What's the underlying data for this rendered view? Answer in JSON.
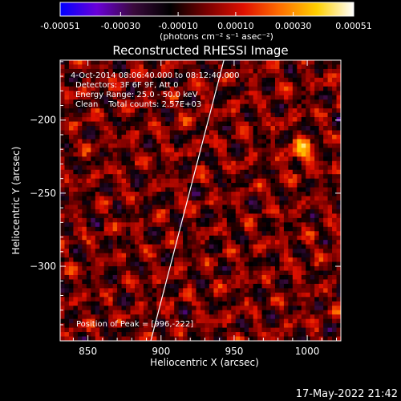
{
  "colorbar": {
    "tick_labels": [
      "-0.00051",
      "-0.00030",
      "-0.00010",
      "0.00010",
      "0.00030",
      "0.00051"
    ],
    "unit_label": "(photons cm⁻² s⁻¹ asec⁻²)",
    "colors": [
      "#0000ff",
      "#6a00d8",
      "#3a0a3c",
      "#000000",
      "#7a0000",
      "#e01000",
      "#ff7000",
      "#ffd000",
      "#ffffff"
    ]
  },
  "chart_data": {
    "type": "heatmap",
    "title": "Reconstructed RHESSI Image",
    "xlabel": "Heliocentric X (arcsec)",
    "ylabel": "Heliocentric Y (arcsec)",
    "xlim": [
      831,
      1023
    ],
    "ylim": [
      -351,
      -159
    ],
    "x_ticks": [
      850,
      900,
      950,
      1000
    ],
    "y_ticks": [
      -200,
      -250,
      -300
    ],
    "vmin": -0.00051,
    "vmax": 0.00051,
    "limb_line": [
      [
        893,
        -351
      ],
      [
        943,
        -159
      ]
    ],
    "peak": [
      996,
      -222
    ],
    "annotations": [
      "4-Oct-2014 08:06:40.000 to 08:12:40.000",
      "Detectors: 3F 6F 9F, Att 0",
      "Energy Range: 25.0 - 50.0 keV",
      "Clean    Total counts: 2.57E+03"
    ],
    "peak_label": "Position of Peak = [996,-222]"
  },
  "timestamp": "17-May-2022 21:42"
}
